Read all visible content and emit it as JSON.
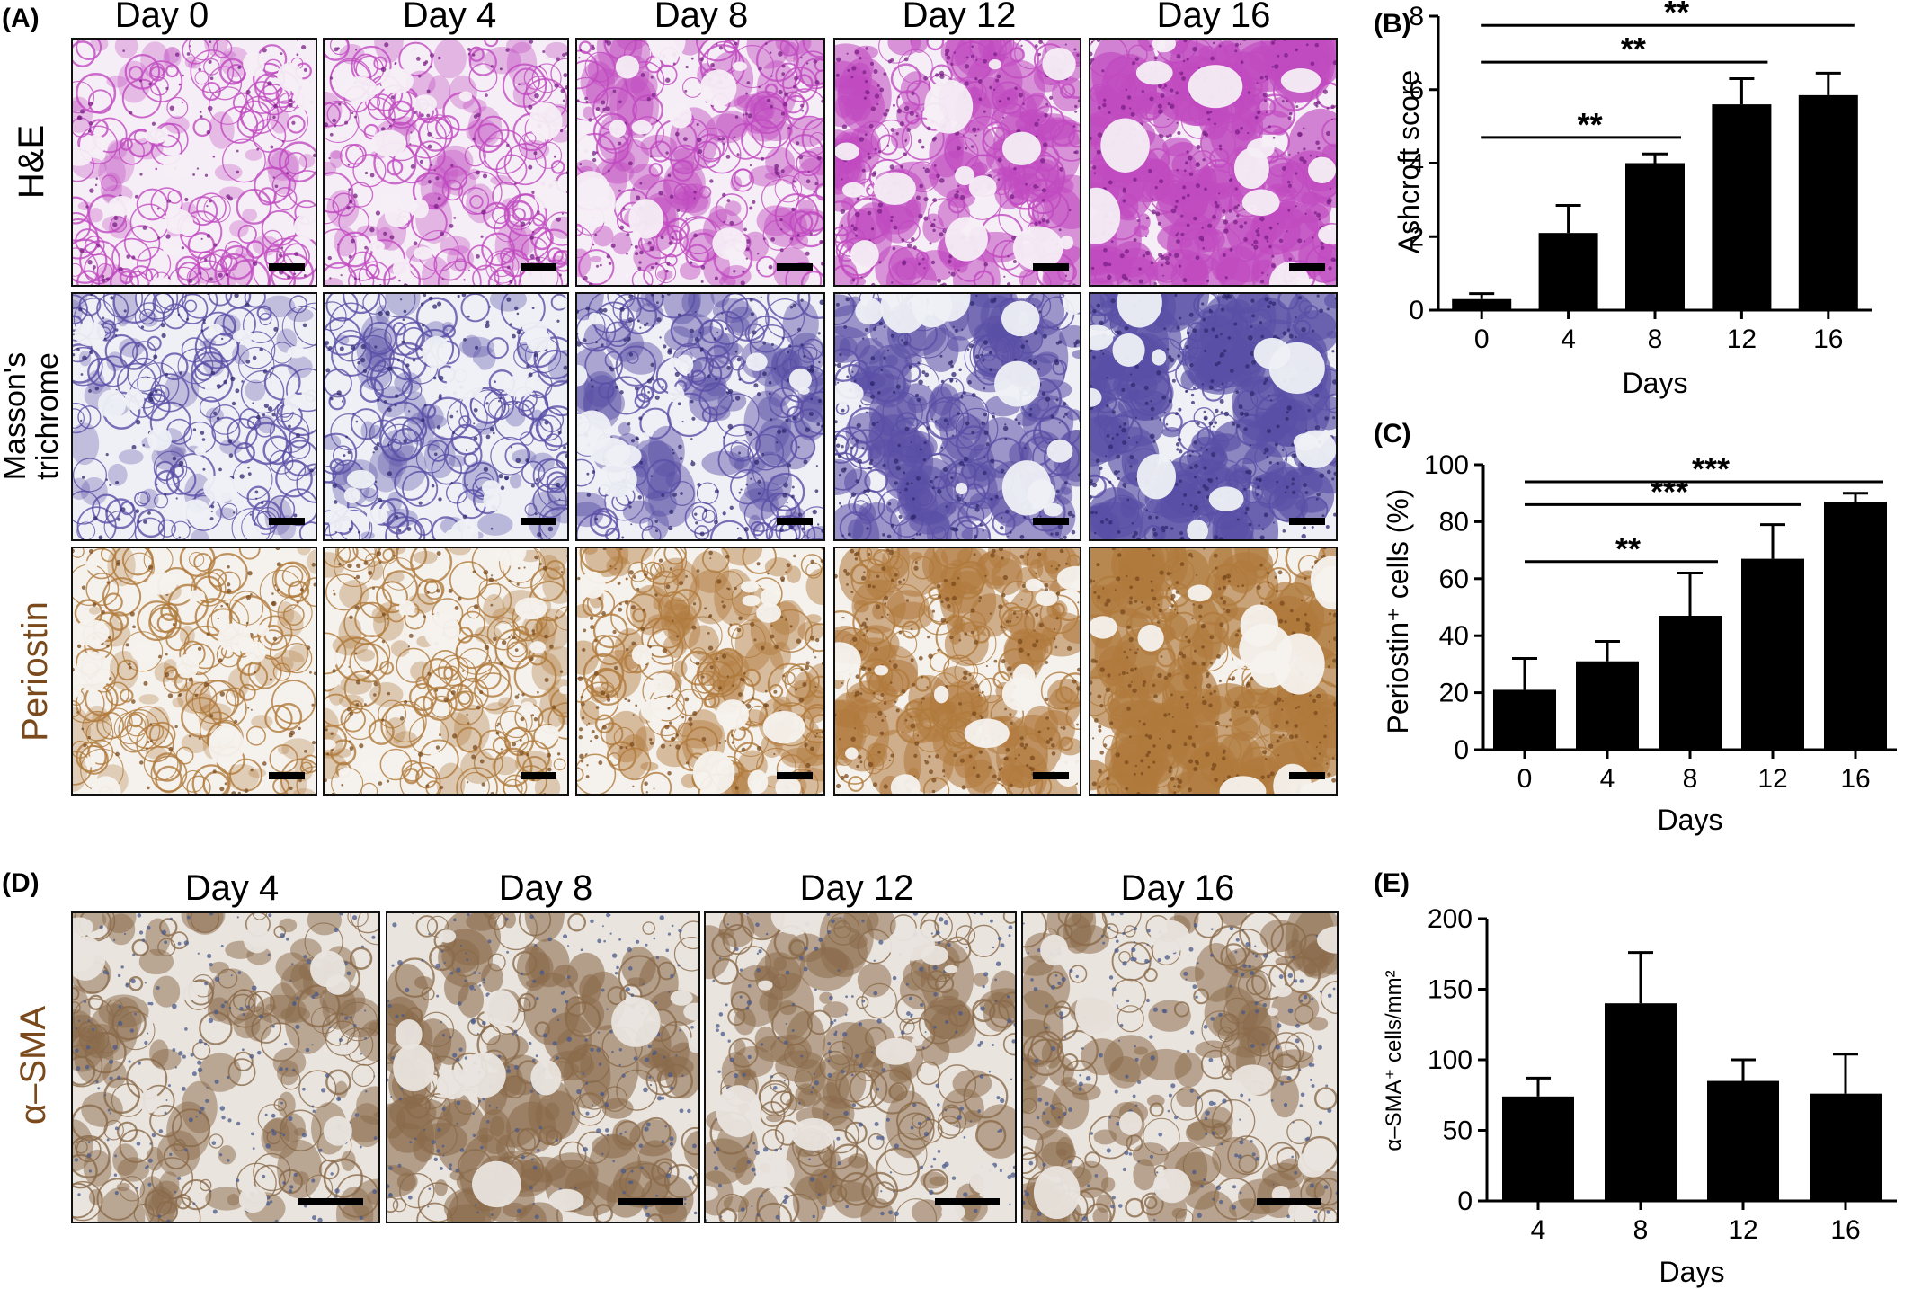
{
  "panels": {
    "A": {
      "letter": "(A)",
      "columns": [
        "Day 0",
        "Day 4",
        "Day 8",
        "Day 12",
        "Day 16"
      ],
      "rows": [
        {
          "label": "H&E",
          "colors": {
            "bg": "#f6eef6",
            "tissue": "#c04ac0",
            "dark": "#7a1f86"
          }
        },
        {
          "label_lines": [
            "Masson's",
            "trichrome"
          ],
          "colors": {
            "bg": "#eef0f6",
            "tissue": "#5a4fa6",
            "dark": "#2f2a70"
          }
        },
        {
          "label": "Periostin",
          "label_color": "#7a4a1c",
          "colors": {
            "bg": "#f5f2ee",
            "tissue": "#b07a3c",
            "dark": "#7a4a1c"
          }
        }
      ],
      "density": [
        0.12,
        0.2,
        0.42,
        0.62,
        0.82
      ]
    },
    "D": {
      "letter": "(D)",
      "columns": [
        "Day 4",
        "Day 8",
        "Day 12",
        "Day 16"
      ],
      "row_label": "α–SMA",
      "row_label_color": "#7a4a1c",
      "colors": {
        "bg": "#e9e4de",
        "tissue": "#8a6a4a",
        "nuclei": "#4a5a8a"
      },
      "density": [
        0.5,
        0.65,
        0.55,
        0.55
      ]
    }
  },
  "chart_data": [
    {
      "id": "B",
      "letter": "(B)",
      "type": "bar",
      "categories": [
        "0",
        "4",
        "8",
        "12",
        "16"
      ],
      "values": [
        0.3,
        2.1,
        4.0,
        5.6,
        5.85
      ],
      "errors": [
        0.15,
        0.75,
        0.25,
        0.7,
        0.6
      ],
      "xlabel": "Days",
      "ylabel": "Ashcroft score",
      "ylim": [
        0,
        8
      ],
      "yticks": [
        "0",
        "2",
        "4",
        "6",
        "8"
      ],
      "yticks_values": [
        0,
        2,
        4,
        6,
        8
      ],
      "significance": [
        {
          "from": 0,
          "to": 2,
          "y": 4.7,
          "label": "**"
        },
        {
          "from": 0,
          "to": 3,
          "y": 6.75,
          "label": "**"
        },
        {
          "from": 0,
          "to": 4,
          "y": 7.75,
          "label": "**"
        }
      ]
    },
    {
      "id": "C",
      "letter": "(C)",
      "type": "bar",
      "categories": [
        "0",
        "4",
        "8",
        "12",
        "16"
      ],
      "values": [
        21,
        31,
        47,
        67,
        87
      ],
      "errors": [
        11,
        7,
        15,
        12,
        3
      ],
      "xlabel": "Days",
      "ylabel": "Periostin⁺ cells (%)",
      "ylim": [
        0,
        100
      ],
      "yticks": [
        "0",
        "20",
        "40",
        "60",
        "80",
        "100"
      ],
      "yticks_values": [
        0,
        20,
        40,
        60,
        80,
        100
      ],
      "significance": [
        {
          "from": 0,
          "to": 2,
          "y": 66,
          "label": "**"
        },
        {
          "from": 0,
          "to": 3,
          "y": 86,
          "label": "***"
        },
        {
          "from": 0,
          "to": 4,
          "y": 94,
          "label": "***"
        }
      ]
    },
    {
      "id": "E",
      "letter": "(E)",
      "type": "bar",
      "categories": [
        "4",
        "8",
        "12",
        "16"
      ],
      "values": [
        74,
        140,
        85,
        76
      ],
      "errors": [
        13,
        36,
        15,
        28
      ],
      "xlabel": "Days",
      "ylabel": "α–SMA⁺ cells/mm²",
      "ylim": [
        0,
        200
      ],
      "yticks": [
        "0",
        "50",
        "100",
        "150",
        "200"
      ],
      "yticks_values": [
        0,
        50,
        100,
        150,
        200
      ],
      "significance": []
    }
  ]
}
